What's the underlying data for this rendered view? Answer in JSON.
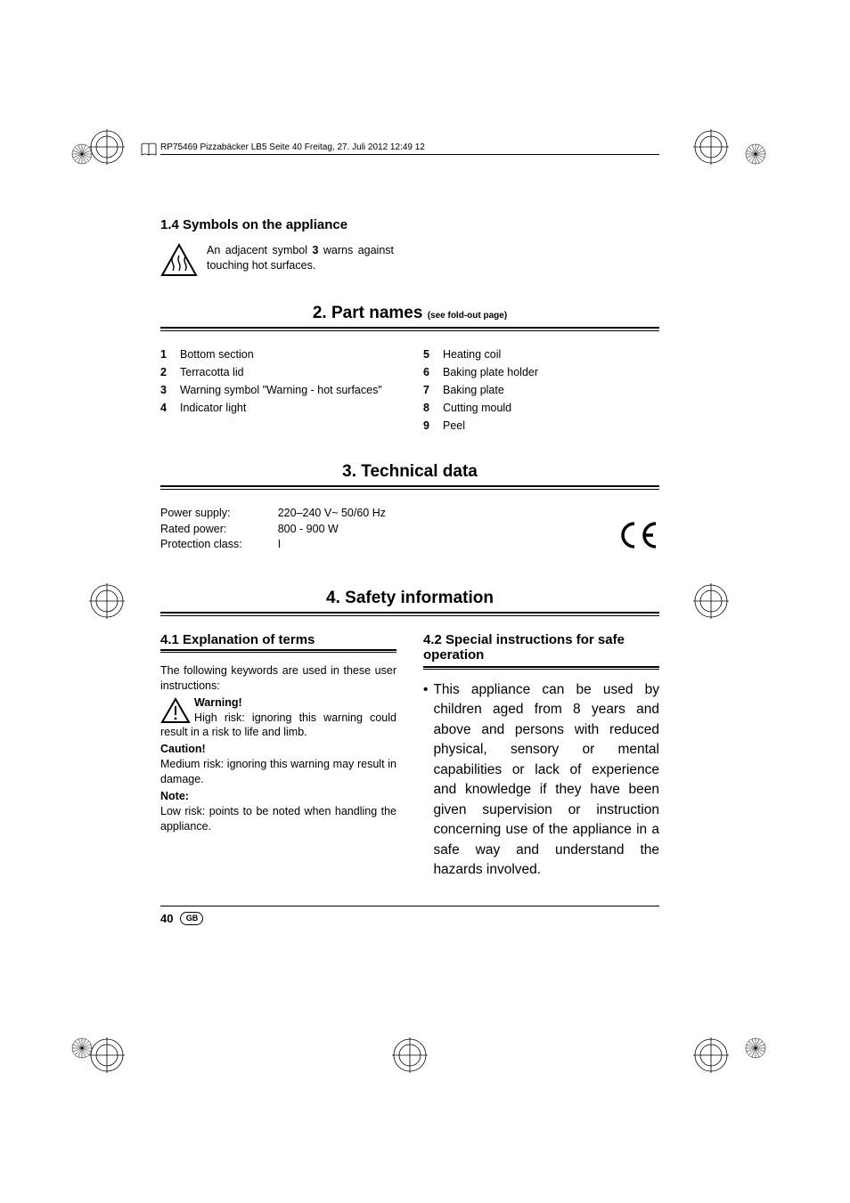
{
  "header_text": "RP75469 Pizzabäcker LB5  Seite 40  Freitag, 27. Juli 2012  12:49 12",
  "section14": {
    "title": "1.4 Symbols on the appliance",
    "text_before": "An adjacent symbol ",
    "bold_ref": "3",
    "text_after": " warns against touching hot surfaces."
  },
  "section2": {
    "title": "2. Part names",
    "subtitle": "(see fold-out page)",
    "left": [
      {
        "n": "1",
        "t": "Bottom section"
      },
      {
        "n": "2",
        "t": "Terracotta lid"
      },
      {
        "n": "3",
        "t": "Warning symbol \"Warning - hot surfaces\""
      },
      {
        "n": "4",
        "t": "Indicator light"
      }
    ],
    "right": [
      {
        "n": "5",
        "t": "Heating coil"
      },
      {
        "n": "6",
        "t": "Baking plate holder"
      },
      {
        "n": "7",
        "t": "Baking plate"
      },
      {
        "n": "8",
        "t": "Cutting mould"
      },
      {
        "n": "9",
        "t": "Peel"
      }
    ]
  },
  "section3": {
    "title": "3. Technical data",
    "rows": [
      {
        "label": "Power supply:",
        "value": "220–240 V~ 50/60 Hz"
      },
      {
        "label": "Rated power:",
        "value": "800 - 900 W"
      },
      {
        "label": "Protection class:",
        "value": "I"
      }
    ]
  },
  "section4": {
    "title": "4. Safety information"
  },
  "section41": {
    "title": "4.1 Explanation of terms",
    "intro": "The following keywords are used in these user instructions:",
    "warning_label": "Warning!",
    "warning_text": "High risk: ignoring this warning could result in a risk to life and limb.",
    "caution_label": "Caution!",
    "caution_text": "Medium risk: ignoring this warning may result in damage.",
    "note_label": "Note:",
    "note_text": "Low risk: points to be noted when handling the appliance."
  },
  "section42": {
    "title": "4.2 Special instructions for safe operation",
    "bullet": "This appliance can be used by children aged from 8 years and above and persons with reduced physical, sensory or mental capabilities or lack of experience and knowledge if they have been given supervision or instruction concerning use of the appliance in a safe way and understand the hazards involved."
  },
  "footer": {
    "page": "40",
    "country": "GB"
  },
  "colors": {
    "text": "#000000",
    "bg": "#ffffff",
    "rule": "#000000"
  }
}
